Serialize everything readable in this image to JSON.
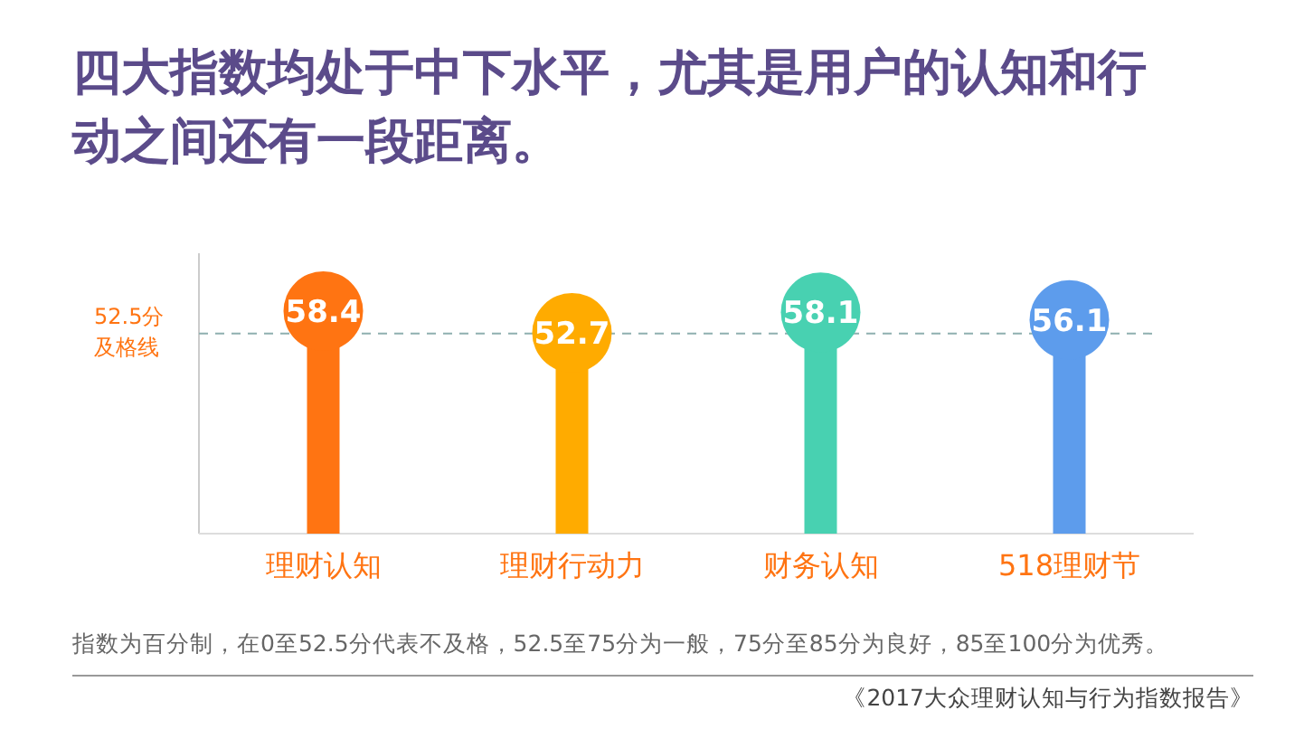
{
  "chart_data": {
    "type": "lollipop",
    "title": "四大指数均处于中下水平，尤其是用户的认知和行动之间还有一段距离。",
    "categories": [
      "理财认知",
      "理财行动力",
      "财务认知",
      "518理财节"
    ],
    "values": [
      58.4,
      52.7,
      58.1,
      56.1
    ],
    "colors": [
      "#ff7412",
      "#ffab00",
      "#48d1b1",
      "#5d9cec"
    ],
    "data_labels": true,
    "ref_lines": [
      {
        "axis": "y",
        "value": 52.5,
        "label": "52.5分及格线",
        "color": "#8fb0b0",
        "line_style": "dashed"
      }
    ],
    "annotations": [
      "指数为百分制，在0至52.5分代表不及格，52.5至75分为一般，75分至85分为良好，85至100分为优秀。",
      "《2017大众理财认知与行为指数报告》"
    ]
  }
}
